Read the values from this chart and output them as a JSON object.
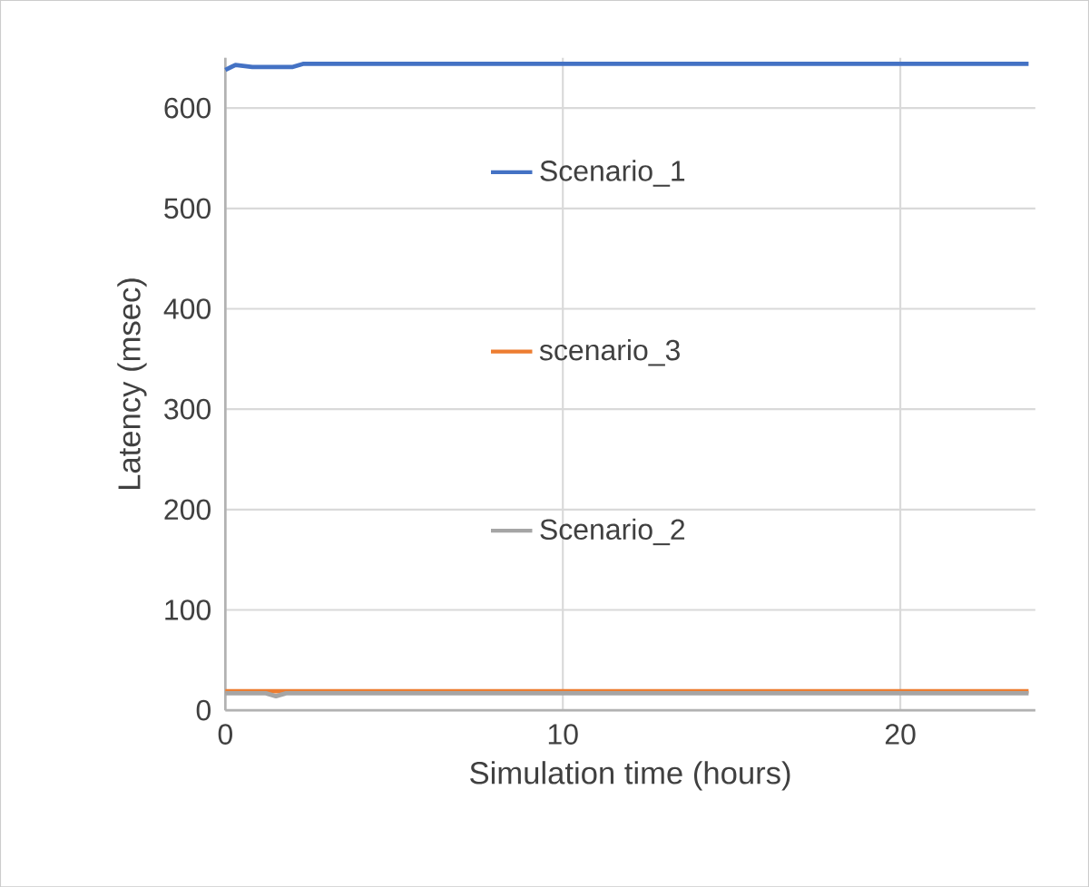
{
  "chart_data": {
    "type": "line",
    "xlabel": "Simulation time (hours)",
    "ylabel": "Latency (msec)",
    "xlim": [
      0,
      24
    ],
    "ylim": [
      0,
      650
    ],
    "xticks": [
      0,
      10,
      20
    ],
    "yticks": [
      0,
      100,
      200,
      300,
      400,
      500,
      600
    ],
    "grid": true,
    "legend": "center",
    "line_style": "solid",
    "marker": "none",
    "series": [
      {
        "name": "Scenario_1",
        "color": "#4472c4",
        "x": [
          0,
          0.3,
          0.8,
          2,
          2.3,
          23.8
        ],
        "values": [
          638,
          643,
          641,
          641,
          644,
          644
        ]
      },
      {
        "name": "scenario_3",
        "color": "#ed7d31",
        "x": [
          0,
          23.8
        ],
        "values": [
          19,
          19
        ]
      },
      {
        "name": "Scenario_2",
        "color": "#a5a5a5",
        "x": [
          0,
          1.2,
          1.5,
          1.8,
          23.8
        ],
        "values": [
          17,
          17,
          14,
          17,
          17
        ]
      }
    ]
  }
}
